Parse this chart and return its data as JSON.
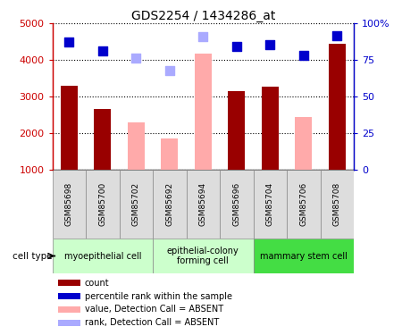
{
  "title": "GDS2254 / 1434286_at",
  "samples": [
    "GSM85698",
    "GSM85700",
    "GSM85702",
    "GSM85692",
    "GSM85694",
    "GSM85696",
    "GSM85704",
    "GSM85706",
    "GSM85708"
  ],
  "bar_values": [
    3300,
    2670,
    null,
    null,
    null,
    3160,
    3280,
    null,
    4450
  ],
  "bar_values_absent": [
    null,
    null,
    2300,
    1850,
    4170,
    null,
    null,
    2450,
    null
  ],
  "bar_color_present": "#990000",
  "bar_color_absent": "#ffaaaa",
  "dot_values_present": [
    4500,
    4250,
    null,
    null,
    null,
    4380,
    4430,
    4120,
    4670
  ],
  "dot_values_absent": [
    null,
    null,
    4050,
    3700,
    4640,
    null,
    null,
    null,
    null
  ],
  "dot_color_present": "#0000cc",
  "dot_color_absent": "#aaaaff",
  "ylim_left": [
    1000,
    5000
  ],
  "yticks_left": [
    1000,
    2000,
    3000,
    4000,
    5000
  ],
  "yticks_right": [
    0,
    25,
    50,
    75,
    100
  ],
  "yticklabels_right": [
    "0",
    "25",
    "50",
    "75",
    "100%"
  ],
  "cell_type_groups": [
    {
      "label": "myoepithelial cell",
      "indices": [
        0,
        1,
        2
      ],
      "color": "#ccffcc"
    },
    {
      "label": "epithelial-colony\nforming cell",
      "indices": [
        3,
        4,
        5
      ],
      "color": "#ccffcc"
    },
    {
      "label": "mammary stem cell",
      "indices": [
        6,
        7,
        8
      ],
      "color": "#44dd44"
    }
  ],
  "legend_items": [
    {
      "label": "count",
      "color": "#990000"
    },
    {
      "label": "percentile rank within the sample",
      "color": "#0000cc"
    },
    {
      "label": "value, Detection Call = ABSENT",
      "color": "#ffaaaa"
    },
    {
      "label": "rank, Detection Call = ABSENT",
      "color": "#aaaaff"
    }
  ],
  "cell_type_label": "cell type",
  "background_color": "#ffffff",
  "bar_width": 0.5,
  "dot_size": 55,
  "sample_box_color": "#dddddd"
}
